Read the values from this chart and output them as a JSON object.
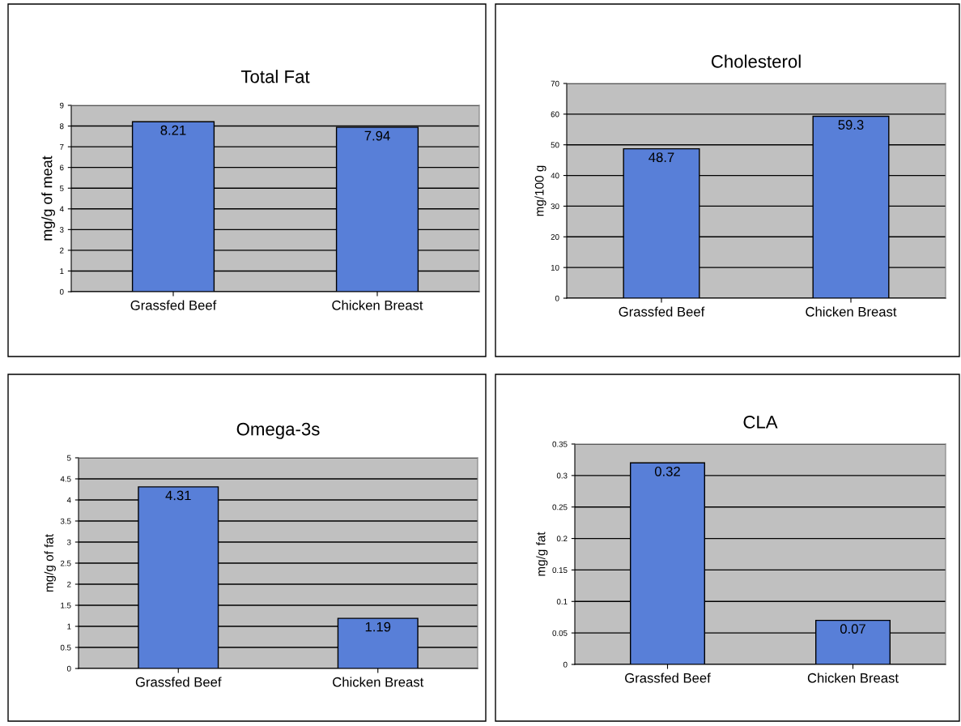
{
  "chart_data": [
    {
      "type": "bar",
      "title": "Total Fat",
      "ylabel": "mg/g of meat",
      "categories": [
        "Grassfed Beef",
        "Chicken Breast"
      ],
      "values": [
        8.21,
        7.94
      ],
      "color": "#587fd8",
      "ylim": [
        0,
        9
      ],
      "yticks": [
        0,
        1,
        2,
        3,
        4,
        5,
        6,
        7,
        8,
        9
      ],
      "grid": "y",
      "data_labels": true
    },
    {
      "type": "bar",
      "title": "Cholesterol",
      "ylabel": "mg/100 g",
      "categories": [
        "Grassfed Beef",
        "Chicken Breast"
      ],
      "values": [
        48.7,
        59.3
      ],
      "color": "#587fd8",
      "ylim": [
        0,
        70
      ],
      "yticks": [
        0,
        10,
        20,
        30,
        40,
        50,
        60,
        70
      ],
      "grid": "y",
      "data_labels": true
    },
    {
      "type": "bar",
      "title": "Omega-3s",
      "ylabel": "mg/g of fat",
      "categories": [
        "Grassfed Beef",
        "Chicken Breast"
      ],
      "values": [
        4.31,
        1.19
      ],
      "color": "#587fd8",
      "ylim": [
        0,
        5
      ],
      "yticks": [
        0,
        0.5,
        1,
        1.5,
        2,
        2.5,
        3,
        3.5,
        4,
        4.5,
        5
      ],
      "grid": "y",
      "data_labels": true
    },
    {
      "type": "bar",
      "title": "CLA",
      "ylabel": "mg/g fat",
      "categories": [
        "Grassfed Beef",
        "Chicken Breast"
      ],
      "values": [
        0.32,
        0.07
      ],
      "color": "#587fd8",
      "ylim": [
        0,
        0.35
      ],
      "yticks": [
        0,
        0.05,
        0.1,
        0.15,
        0.2,
        0.25,
        0.3,
        0.35
      ],
      "grid": "y",
      "data_labels": true
    }
  ]
}
